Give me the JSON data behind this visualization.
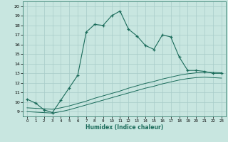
{
  "xlabel": "Humidex (Indice chaleur)",
  "bg_color": "#c8e6e0",
  "grid_color": "#a8ccc8",
  "line_color": "#1a6b5a",
  "xlim": [
    -0.5,
    23.5
  ],
  "ylim": [
    8.5,
    20.5
  ],
  "xticks": [
    0,
    1,
    2,
    3,
    4,
    5,
    6,
    7,
    8,
    9,
    10,
    11,
    12,
    13,
    14,
    15,
    16,
    17,
    18,
    19,
    20,
    21,
    22,
    23
  ],
  "yticks": [
    9,
    10,
    11,
    12,
    13,
    14,
    15,
    16,
    17,
    18,
    19,
    20
  ],
  "line1_x": [
    0,
    1,
    2,
    3,
    4,
    5,
    6,
    7,
    8,
    9,
    10,
    11,
    12,
    13,
    14,
    15,
    16,
    17,
    18,
    19,
    20,
    21,
    22,
    23
  ],
  "line1_y": [
    10.3,
    9.9,
    9.2,
    8.9,
    10.2,
    11.5,
    12.8,
    17.3,
    18.1,
    18.0,
    19.0,
    19.5,
    17.6,
    16.9,
    15.9,
    15.5,
    17.0,
    16.8,
    14.7,
    13.3,
    13.3,
    13.2,
    13.0,
    13.0
  ],
  "line2_x": [
    0,
    1,
    2,
    3,
    4,
    5,
    6,
    7,
    8,
    9,
    10,
    11,
    12,
    13,
    14,
    15,
    16,
    17,
    18,
    19,
    20,
    21,
    22,
    23
  ],
  "line2_y": [
    9.4,
    9.35,
    9.3,
    9.25,
    9.4,
    9.6,
    9.85,
    10.1,
    10.4,
    10.65,
    10.9,
    11.15,
    11.45,
    11.7,
    11.95,
    12.15,
    12.4,
    12.6,
    12.8,
    12.95,
    13.05,
    13.1,
    13.1,
    13.05
  ],
  "line3_x": [
    0,
    1,
    2,
    3,
    4,
    5,
    6,
    7,
    8,
    9,
    10,
    11,
    12,
    13,
    14,
    15,
    16,
    17,
    18,
    19,
    20,
    21,
    22,
    23
  ],
  "line3_y": [
    9.0,
    8.95,
    8.9,
    8.85,
    9.0,
    9.2,
    9.45,
    9.7,
    9.95,
    10.2,
    10.45,
    10.7,
    10.95,
    11.2,
    11.45,
    11.65,
    11.9,
    12.1,
    12.3,
    12.45,
    12.55,
    12.6,
    12.55,
    12.5
  ]
}
